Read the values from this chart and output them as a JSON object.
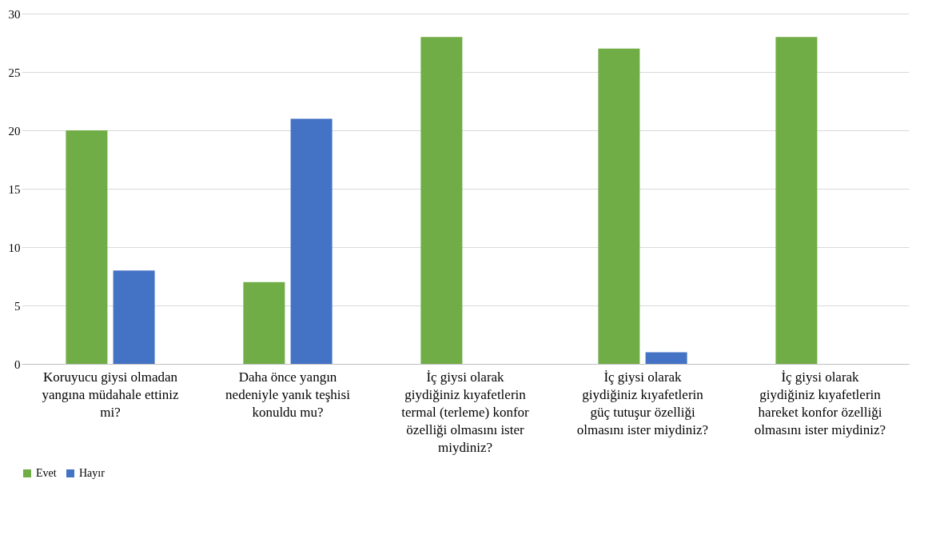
{
  "chart_data": {
    "type": "bar",
    "categories": [
      "Koruyucu giysi olmadan yangına müdahale ettiniz mi?",
      "Daha önce yangın nedeniyle yanık teşhisi konuldu mu?",
      "İç giysi olarak giydiğiniz kıyafetlerin termal (terleme) konfor özelliği olmasını ister miydiniz?",
      "İç giysi olarak giydiğiniz kıyafetlerin güç tutuşur özelliği olmasını ister miydiniz?",
      "İç giysi olarak giydiğiniz kıyafetlerin hareket konfor özelliği olmasını ister miydiniz?"
    ],
    "series": [
      {
        "name": "Evet",
        "color": "#70ad47",
        "values": [
          20,
          7,
          28,
          27,
          28
        ]
      },
      {
        "name": "Hayır",
        "color": "#4472c4",
        "values": [
          8,
          21,
          0,
          1,
          0
        ]
      }
    ],
    "ylim": [
      0,
      30
    ],
    "yticks": [
      0,
      5,
      10,
      15,
      20,
      25,
      30
    ],
    "grid": "y",
    "legend": "bottom"
  }
}
